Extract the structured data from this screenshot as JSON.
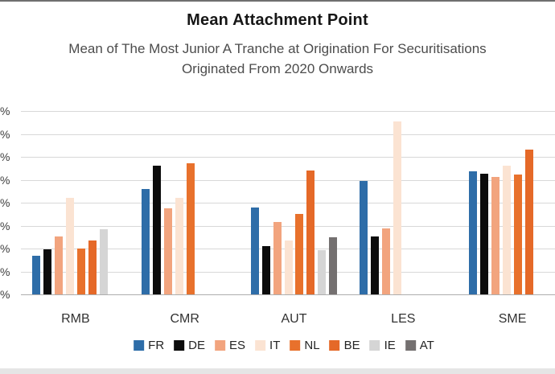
{
  "chart_data": {
    "type": "bar",
    "title": "Mean Attachment Point",
    "subtitle_lines": [
      "Mean of The Most Junior A Tranche at Origination For Securitisations",
      "Originated From 2020 Onwards"
    ],
    "categories": [
      "RMB",
      "CMR",
      "AUT",
      "LES",
      "SME"
    ],
    "series": [
      {
        "name": "FR",
        "color": "#2e6da8",
        "values": [
          8.5,
          22.9,
          19.0,
          24.7,
          26.8
        ]
      },
      {
        "name": "DE",
        "color": "#0c0c0c",
        "values": [
          9.8,
          28.1,
          10.6,
          12.7,
          26.4
        ]
      },
      {
        "name": "ES",
        "color": "#f2a47e",
        "values": [
          12.6,
          18.7,
          15.8,
          14.3,
          25.7
        ]
      },
      {
        "name": "IT",
        "color": "#fbe3d2",
        "values": [
          21.1,
          21.0,
          11.8,
          37.7,
          28.1
        ]
      },
      {
        "name": "NL",
        "color": "#e8712c",
        "values": [
          10.0,
          28.6,
          17.5,
          null,
          26.2
        ]
      },
      {
        "name": "BE",
        "color": "#e56928",
        "values": [
          11.7,
          null,
          27.0,
          null,
          31.6
        ]
      },
      {
        "name": "IE",
        "color": "#d5d5d5",
        "values": [
          14.2,
          null,
          9.6,
          null,
          null
        ]
      },
      {
        "name": "AT",
        "color": "#747070",
        "values": [
          null,
          null,
          12.4,
          null,
          null
        ]
      }
    ],
    "y_axis": {
      "tick_labels_visible": [
        "%",
        "%",
        "%",
        "%",
        "%",
        "%",
        "%",
        "%",
        "%"
      ],
      "ylim": [
        0,
        40
      ],
      "grid_step": 5,
      "grid": true
    },
    "legend": {
      "position": "bottom"
    }
  }
}
